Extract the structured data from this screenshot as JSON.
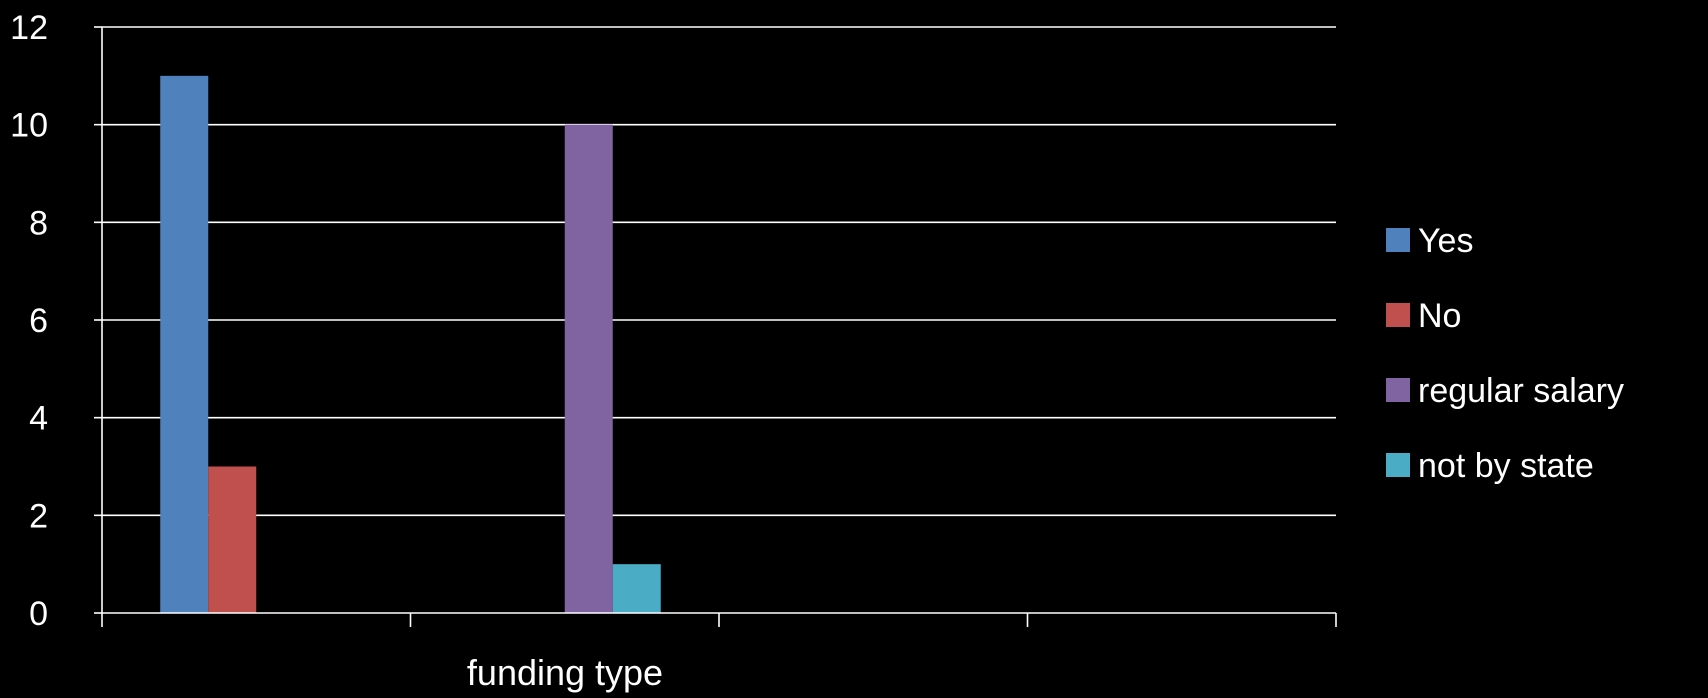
{
  "chart_data": {
    "type": "bar",
    "xlabel": "funding type",
    "ylabel": "",
    "ylim": [
      0,
      12
    ],
    "yticks": [
      0,
      2,
      4,
      6,
      8,
      10,
      12
    ],
    "grid": true,
    "legend_position": "right",
    "category_count": 4,
    "series": [
      {
        "name": "Yes",
        "color": "#4f81bd",
        "category_index": 0,
        "slot": 0,
        "value": 11
      },
      {
        "name": "No",
        "color": "#c0504d",
        "category_index": 0,
        "slot": 1,
        "value": 3
      },
      {
        "name": "regular salary",
        "color": "#8064a2",
        "category_index": 1,
        "slot": 2,
        "value": 10
      },
      {
        "name": "not by state",
        "color": "#4bacc6",
        "category_index": 1,
        "slot": 3,
        "value": 1
      }
    ]
  }
}
